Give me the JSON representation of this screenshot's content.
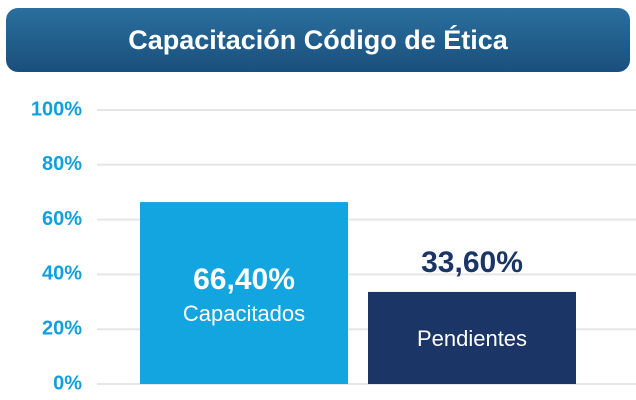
{
  "chart_data": {
    "type": "bar",
    "title": "Capacitación Código de Ética",
    "categories": [
      "Capacitados",
      "Pendientes"
    ],
    "values": [
      66.4,
      33.6
    ],
    "value_labels": [
      "66,40%",
      "33,60%"
    ],
    "colors": [
      "#12a5e0",
      "#1b3566"
    ],
    "ylim": [
      0,
      100
    ],
    "yticks": [
      {
        "value": 0,
        "label": "0%"
      },
      {
        "value": 20,
        "label": "20%"
      },
      {
        "value": 40,
        "label": "40%"
      },
      {
        "value": 60,
        "label": "60%"
      },
      {
        "value": 80,
        "label": "80%"
      },
      {
        "value": 100,
        "label": "100%"
      }
    ],
    "grid": true
  }
}
